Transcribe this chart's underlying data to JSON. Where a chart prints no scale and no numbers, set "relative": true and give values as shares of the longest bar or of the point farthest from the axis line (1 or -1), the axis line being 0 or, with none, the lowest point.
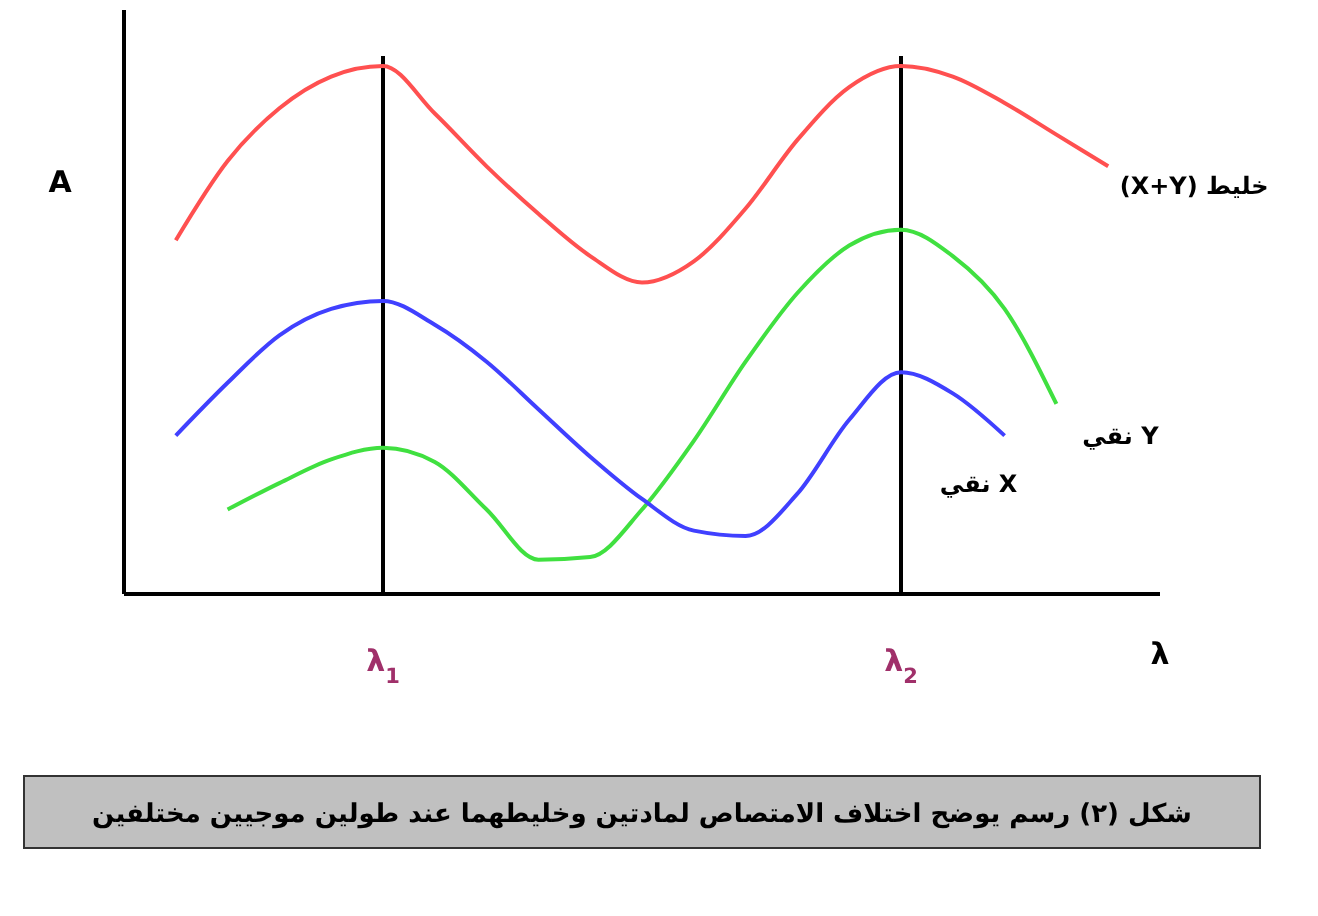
{
  "chart_data": {
    "type": "line",
    "relative": true,
    "ylabel": "A",
    "xlabel": "λ",
    "categories": [
      null,
      null,
      null,
      null,
      null,
      "λ$_{1}$",
      null,
      null,
      null,
      null,
      null,
      null,
      null,
      null,
      null,
      "λ$_{2}$",
      null,
      null,
      null,
      null,
      null
    ],
    "ref_lines": [
      {
        "axis": "x",
        "value": "λ$_{1}$",
        "color": "#000000"
      },
      {
        "axis": "x",
        "value": "λ$_{2}$",
        "color": "#000000"
      }
    ],
    "line_style": "solid",
    "annotations": [
      "شكل (٢) رسم يوضح اختلاف الامتصاص لمادتين وخليطهما عند طولين موجيين مختلفين"
    ],
    "series": [
      {
        "name": "خليط (X+Y)",
        "color": "#ff5050",
        "values": [
          null,
          0.67,
          0.82,
          0.92,
          0.98,
          1,
          0.91,
          0.81,
          0.72,
          0.64,
          0.59,
          0.63,
          0.73,
          0.86,
          0.96,
          1,
          0.98,
          0.93,
          0.87,
          0.81,
          null
        ]
      },
      {
        "name": "Y نقي",
        "color": "#40e040",
        "values": [
          null,
          null,
          0.16,
          0.21,
          0.255,
          0.277,
          0.25,
          0.16,
          0.065,
          0.07,
          0.16,
          0.29,
          0.44,
          0.57,
          0.66,
          0.69,
          0.64,
          0.54,
          0.36,
          null,
          null
        ]
      },
      {
        "name": "X نقي",
        "color": "#4040ff",
        "values": [
          null,
          0.3,
          0.4,
          0.49,
          0.54,
          0.555,
          0.51,
          0.44,
          0.35,
          0.26,
          0.18,
          0.12,
          0.11,
          0.19,
          0.33,
          0.42,
          0.38,
          0.3,
          null,
          null,
          null
        ]
      }
    ]
  }
}
